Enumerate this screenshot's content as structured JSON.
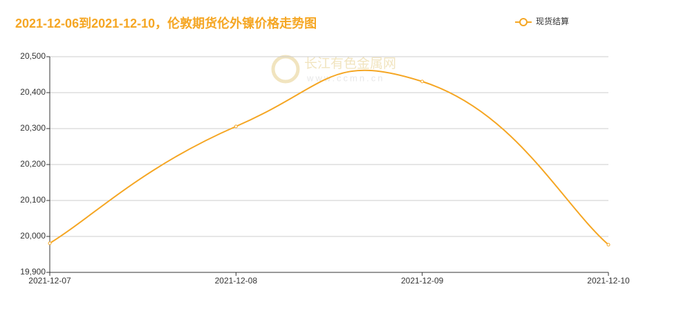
{
  "chart_data": {
    "type": "line",
    "title": "2021-12-06到2021-12-10，伦敦期货伦外镍价格走势图",
    "watermark": {
      "name": "长江有色金属网",
      "url": "www.ccmn.cn"
    },
    "categories": [
      "2021-12-07",
      "2021-12-08",
      "2021-12-09",
      "2021-12-10"
    ],
    "series": [
      {
        "name": "现货结算",
        "color": "#f5a623",
        "values": [
          19981,
          20306,
          20431,
          19977
        ]
      }
    ],
    "ylim": [
      19900,
      20500
    ],
    "yticks": [
      {
        "value": 19900,
        "label": "19,900"
      },
      {
        "value": 20000,
        "label": "20,000"
      },
      {
        "value": 20100,
        "label": "20,100"
      },
      {
        "value": 20200,
        "label": "20,200"
      },
      {
        "value": 20300,
        "label": "20,300"
      },
      {
        "value": 20400,
        "label": "20,400"
      },
      {
        "value": 20500,
        "label": "20,500"
      }
    ],
    "grid": true,
    "smooth": true,
    "legend": "top-right"
  }
}
